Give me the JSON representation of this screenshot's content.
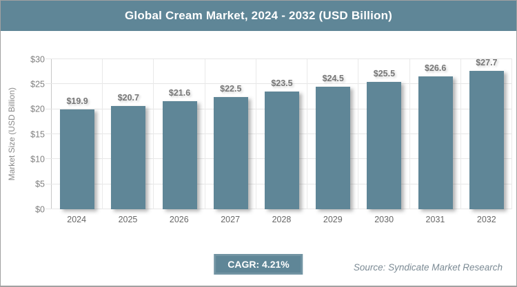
{
  "header": {
    "title": "Global Cream Market, 2024 - 2032 (USD Billion)"
  },
  "chart_data": {
    "type": "bar",
    "title": "Global Cream Market, 2024 - 2032 (USD Billion)",
    "categories": [
      "2024",
      "2025",
      "2026",
      "2027",
      "2028",
      "2029",
      "2030",
      "2031",
      "2032"
    ],
    "values": [
      19.9,
      20.7,
      21.6,
      22.5,
      23.5,
      24.5,
      25.5,
      26.6,
      27.7
    ],
    "value_labels": [
      "$19.9",
      "$20.7",
      "$21.6",
      "$22.5",
      "$23.5",
      "$24.5",
      "$25.5",
      "$26.6",
      "$27.7"
    ],
    "xlabel": "",
    "ylabel": "Market Size (USD Billion)",
    "ylim": [
      0,
      30
    ],
    "yticks": [
      0,
      5,
      10,
      15,
      20,
      25,
      30
    ],
    "ytick_labels": [
      "$0",
      "$5",
      "$10",
      "$15",
      "$20",
      "$25",
      "$30"
    ],
    "grid": true,
    "legend": "none",
    "bar_color": "#5f8697"
  },
  "footer": {
    "cagr_label": "CAGR: 4.21%",
    "source": "Source: Syndicate Market Research"
  },
  "colors": {
    "accent_steel_blue": "#5f8697",
    "figure_border": "#a1a1a1",
    "gridline": "#e6e6e6",
    "axis_line": "#c6c6c6",
    "tick_label": "#7f7f7f",
    "value_label": "#767676",
    "source_text": "#7b8a94",
    "title_text": "#ffffff",
    "background": "#ffffff"
  }
}
